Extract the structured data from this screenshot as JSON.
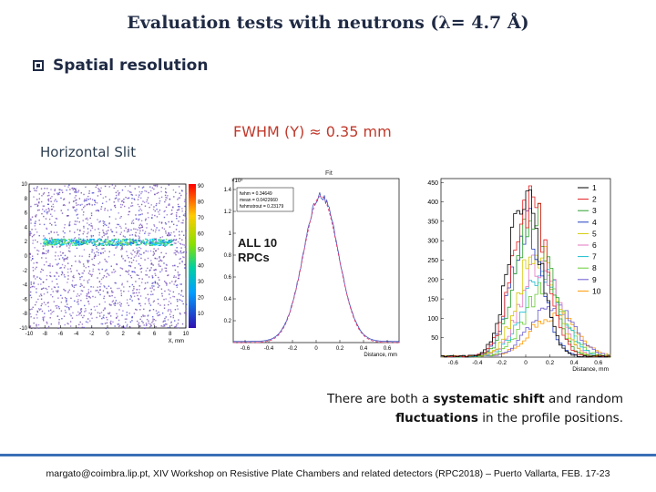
{
  "slide": {
    "title": "Evaluation tests with neutrons (λ= 4.7 Å)",
    "subtitle": "Spatial resolution",
    "fwhm": "FWHM  (Y) ≈ 0.35 mm",
    "slit_label": "Horizontal Slit",
    "note": {
      "prefix": "There are both a ",
      "bold1": "systematic shift",
      "mid": " and random",
      "bold2": "fluctuations",
      "suffix": " in the profile positions."
    },
    "footer": "margato@coimbra.lip.pt,  XIV Workshop on Resistive Plate Chambers and related detectors (RPC2018) – Puerto Vallarta, FEB. 17-23"
  },
  "colors": {
    "title": "#1f2a44",
    "fwhm": "#c0392b",
    "footer_line": "#3b6fb6"
  },
  "chart_data": [
    {
      "type": "heatmap",
      "xlabel": "X, mm",
      "x_ticks": [
        "-10",
        "-8",
        "-6",
        "-4",
        "-2",
        "0",
        "2",
        "4",
        "6",
        "8",
        "10"
      ],
      "y_ticks": [
        "10",
        "8",
        "6",
        "4",
        "2",
        "0",
        "-2",
        "-4",
        "-6",
        "-8",
        "-10"
      ],
      "colorbar_ticks": [
        "90",
        "80",
        "70",
        "60",
        "50",
        "40",
        "30",
        "20",
        "10"
      ],
      "xlim": [
        -10,
        10
      ],
      "ylim": [
        -10,
        10
      ],
      "slit_y": 2
    },
    {
      "type": "line",
      "title": "Fit",
      "xlabel": "Distance, mm",
      "y_exponent": "×10³",
      "annotation": "ALL 10\nRPCs",
      "stats": [
        "fwhm = 0.34649",
        "mean = 0.0422660",
        "fwhmstrout = 0.23179"
      ],
      "x_ticks": [
        "-0.6",
        "-0.4",
        "-0.2",
        "0",
        "0.2",
        "0.4",
        "0.6"
      ],
      "y_ticks": [
        "1.4",
        "1.2",
        "1",
        "0.8",
        "0.6",
        "0.4",
        "0.2"
      ],
      "xlim": [
        -0.7,
        0.7
      ],
      "ylim": [
        0,
        1.5
      ],
      "peak": {
        "mean": 0.04,
        "sigma": 0.147,
        "amplitude": 1.34
      }
    },
    {
      "type": "line",
      "xlabel": "Distance, mm",
      "x_ticks": [
        "-0.6",
        "-0.4",
        "-0.2",
        "0",
        "0.2",
        "0.4",
        "0.6"
      ],
      "y_ticks": [
        "450",
        "400",
        "350",
        "300",
        "250",
        "200",
        "150",
        "100",
        "50"
      ],
      "xlim": [
        -0.7,
        0.7
      ],
      "ylim": [
        0,
        460
      ],
      "series": [
        {
          "name": "1",
          "color": "#000000",
          "mean": -0.02,
          "sigma": 0.13,
          "amp": 420
        },
        {
          "name": "2",
          "color": "#e41a1c",
          "mean": 0.02,
          "sigma": 0.14,
          "amp": 400
        },
        {
          "name": "3",
          "color": "#2ca02c",
          "mean": 0.05,
          "sigma": 0.14,
          "amp": 365
        },
        {
          "name": "4",
          "color": "#1f3fbf",
          "mean": 0.0,
          "sigma": 0.13,
          "amp": 335
        },
        {
          "name": "5",
          "color": "#d4c800",
          "mean": 0.08,
          "sigma": 0.15,
          "amp": 270
        },
        {
          "name": "6",
          "color": "#e377c2",
          "mean": 0.1,
          "sigma": 0.15,
          "amp": 240
        },
        {
          "name": "7",
          "color": "#17becf",
          "mean": 0.12,
          "sigma": 0.16,
          "amp": 210
        },
        {
          "name": "8",
          "color": "#66cc33",
          "mean": 0.15,
          "sigma": 0.16,
          "amp": 180
        },
        {
          "name": "9",
          "color": "#6a5acd",
          "mean": 0.2,
          "sigma": 0.17,
          "amp": 140
        },
        {
          "name": "10",
          "color": "#ff9900",
          "mean": 0.22,
          "sigma": 0.18,
          "amp": 110
        }
      ]
    }
  ]
}
